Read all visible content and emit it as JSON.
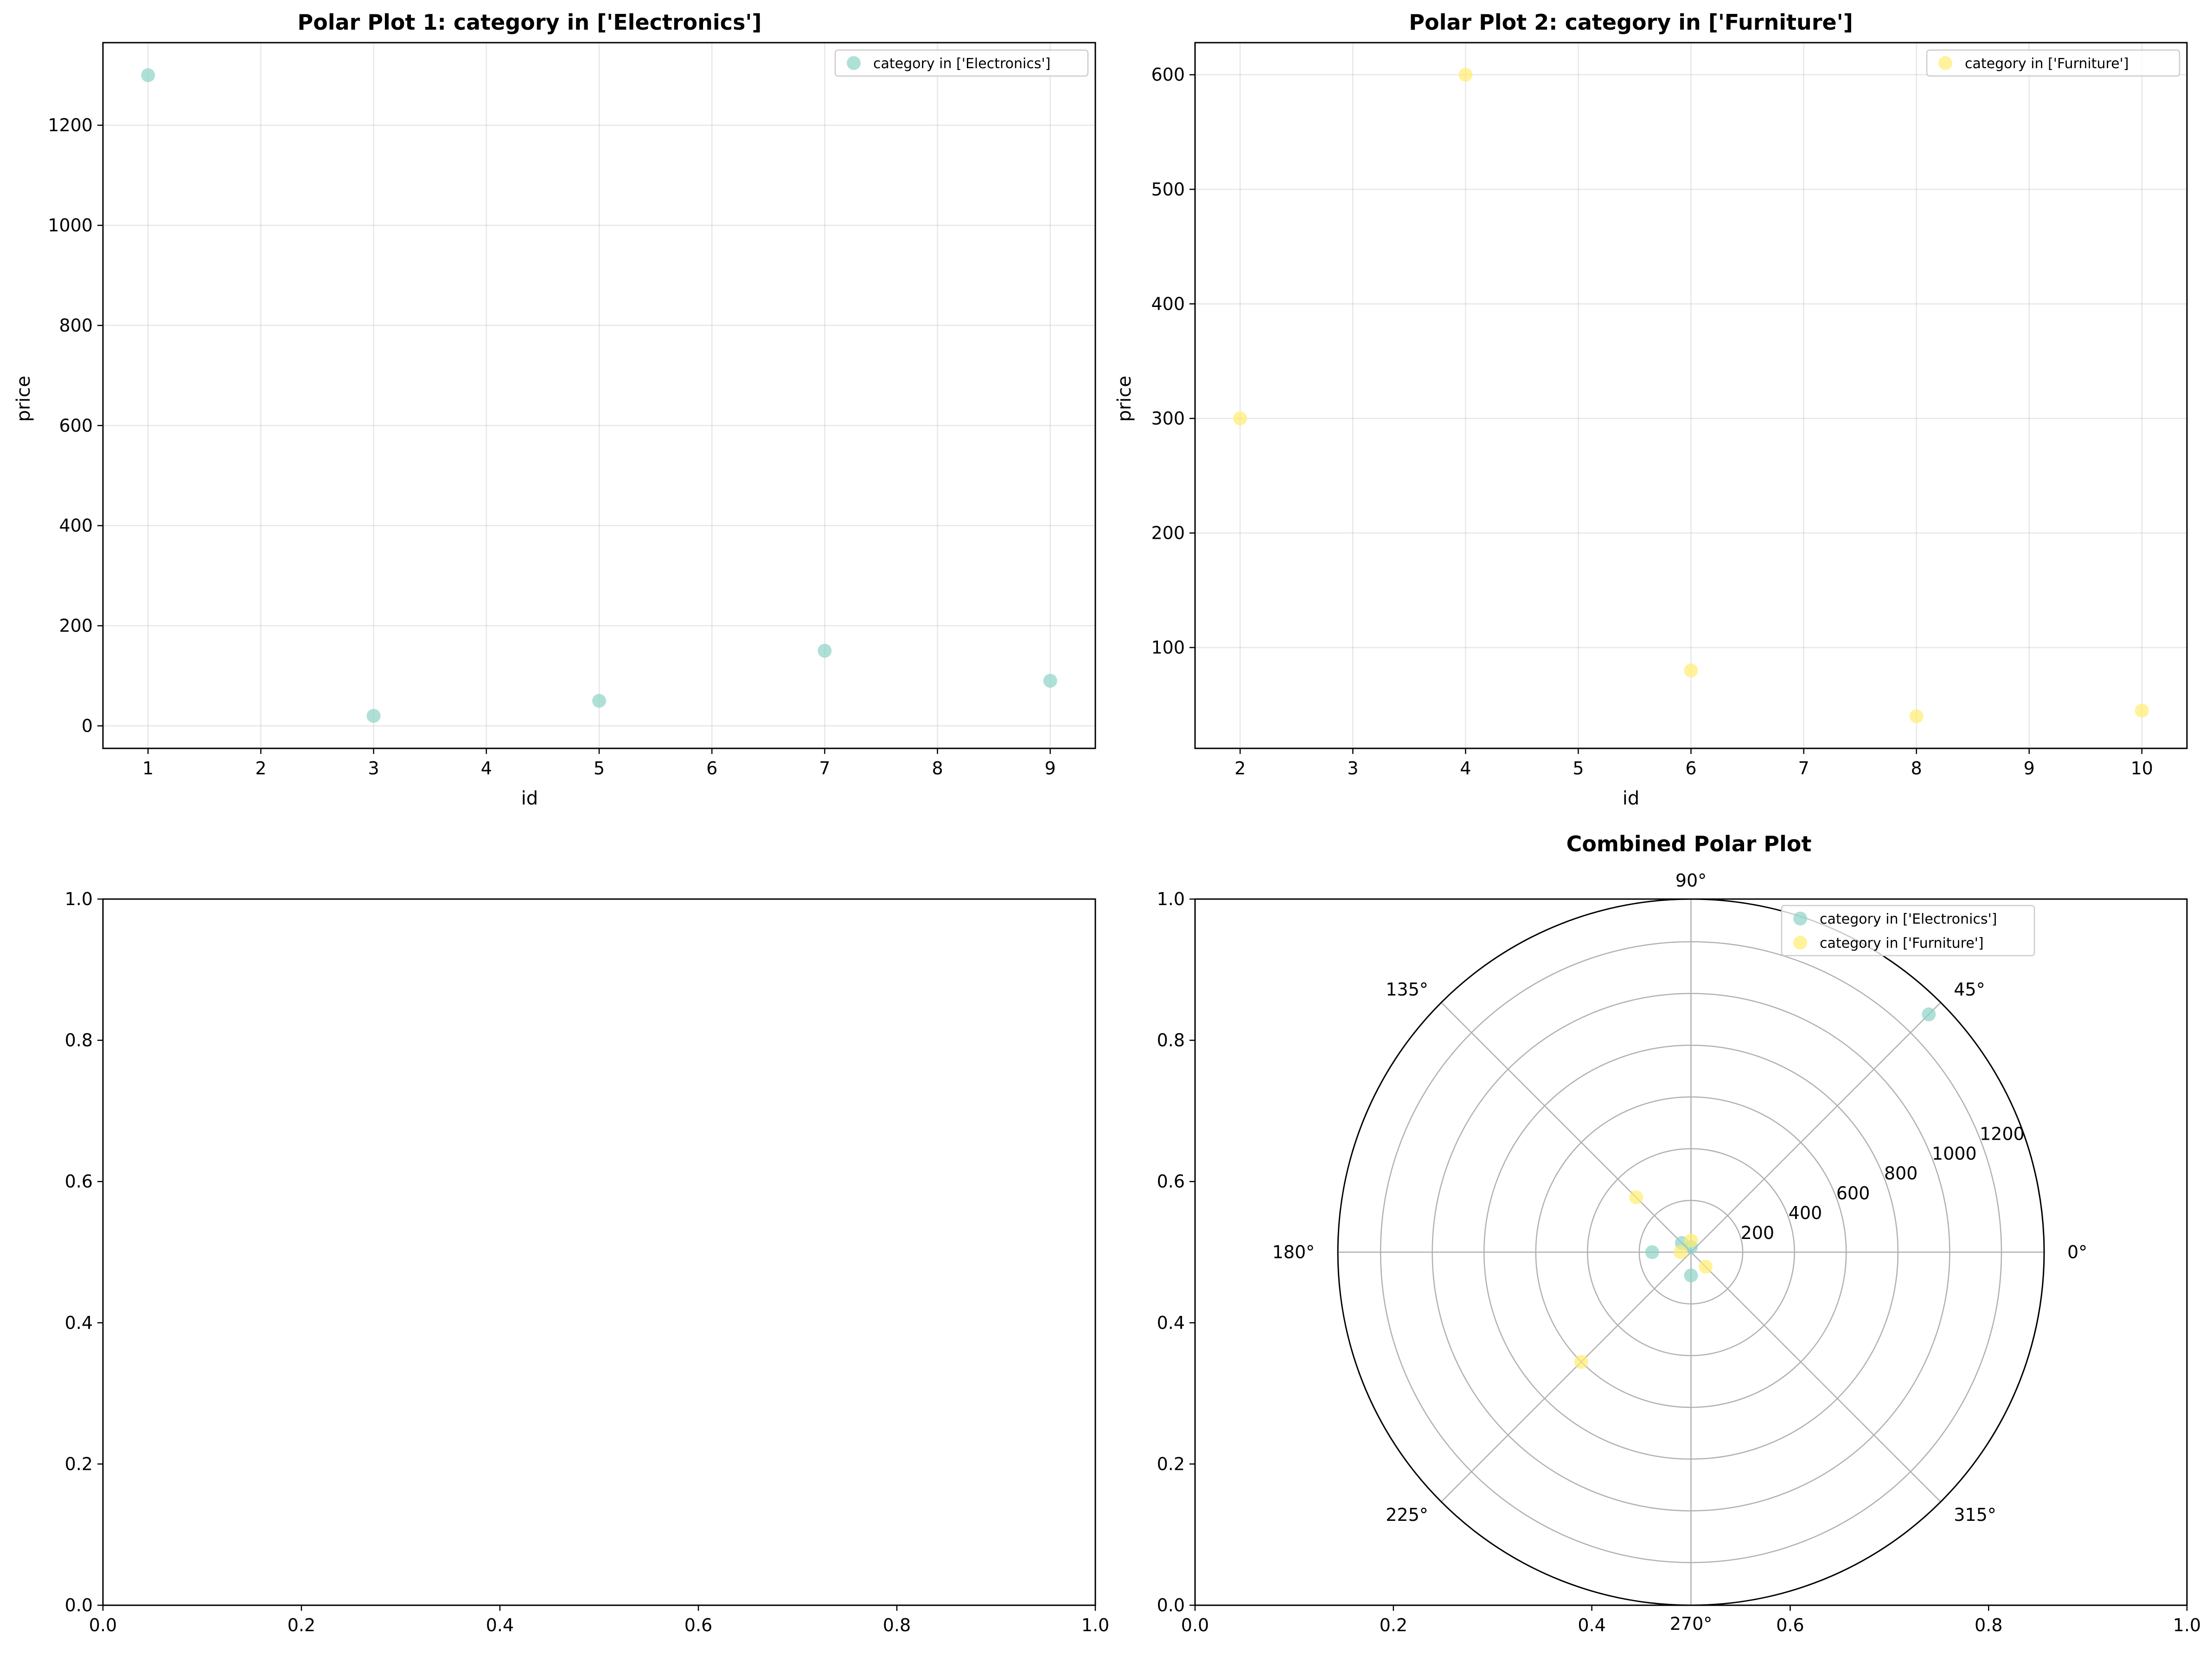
{
  "chart_data": [
    {
      "type": "scatter",
      "title": "Polar Plot 1: category in ['Electronics']",
      "xlabel": "id",
      "ylabel": "price",
      "xlim": [
        0.6,
        9.4
      ],
      "ylim": [
        -45,
        1365
      ],
      "xticks": [
        1,
        2,
        3,
        4,
        5,
        6,
        7,
        8,
        9
      ],
      "yticks": [
        0,
        200,
        400,
        600,
        800,
        1000,
        1200
      ],
      "grid": true,
      "legend_position": "upper right",
      "series": [
        {
          "name": "category in ['Electronics']",
          "color": "#8dd3c7",
          "x": [
            1,
            3,
            5,
            7,
            9
          ],
          "y": [
            1300,
            20,
            50,
            150,
            90
          ]
        }
      ]
    },
    {
      "type": "scatter",
      "title": "Polar Plot 2: category in ['Furniture']",
      "xlabel": "id",
      "ylabel": "price",
      "xlim": [
        1.6,
        10.4
      ],
      "ylim": [
        12,
        628
      ],
      "xticks": [
        2,
        3,
        4,
        5,
        6,
        7,
        8,
        9,
        10
      ],
      "yticks": [
        100,
        200,
        300,
        400,
        500,
        600
      ],
      "grid": true,
      "legend_position": "upper right",
      "series": [
        {
          "name": "category in ['Furniture']",
          "color": "#ffed6f",
          "x": [
            2,
            4,
            6,
            8,
            10
          ],
          "y": [
            300,
            600,
            80,
            40,
            45
          ]
        }
      ]
    },
    {
      "type": "scatter",
      "title": "",
      "xlim": [
        0,
        1
      ],
      "ylim": [
        0,
        1
      ],
      "xticks": [
        "0.0",
        "0.2",
        "0.4",
        "0.6",
        "0.8",
        "1.0"
      ],
      "yticks": [
        "0.0",
        "0.2",
        "0.4",
        "0.6",
        "0.8",
        "1.0"
      ],
      "grid": false,
      "series": []
    },
    {
      "type": "scatter",
      "subtype": "polar",
      "title": "Combined Polar Plot",
      "rlim": [
        0,
        1365
      ],
      "rticks": [
        200,
        400,
        600,
        800,
        1000,
        1200
      ],
      "angle_ticks": [
        "0°",
        "45°",
        "90°",
        "135°",
        "180°",
        "225°",
        "270°",
        "315°"
      ],
      "background_xticks": [
        "0.0",
        "0.2",
        "0.4",
        "0.6",
        "0.8",
        "1.0"
      ],
      "background_yticks": [
        "0.0",
        "0.2",
        "0.4",
        "0.6",
        "0.8",
        "1.0"
      ],
      "grid": true,
      "legend_position": "upper right",
      "series": [
        {
          "name": "category in ['Electronics']",
          "color": "#8dd3c7",
          "theta_deg": [
            45,
            90,
            135,
            180,
            270
          ],
          "r": [
            1300,
            20,
            50,
            150,
            90
          ]
        },
        {
          "name": "category in ['Furniture']",
          "color": "#ffed6f",
          "theta_deg": [
            90,
            135,
            180,
            225,
            315
          ],
          "r": [
            45,
            300,
            40,
            600,
            80
          ]
        }
      ]
    }
  ]
}
